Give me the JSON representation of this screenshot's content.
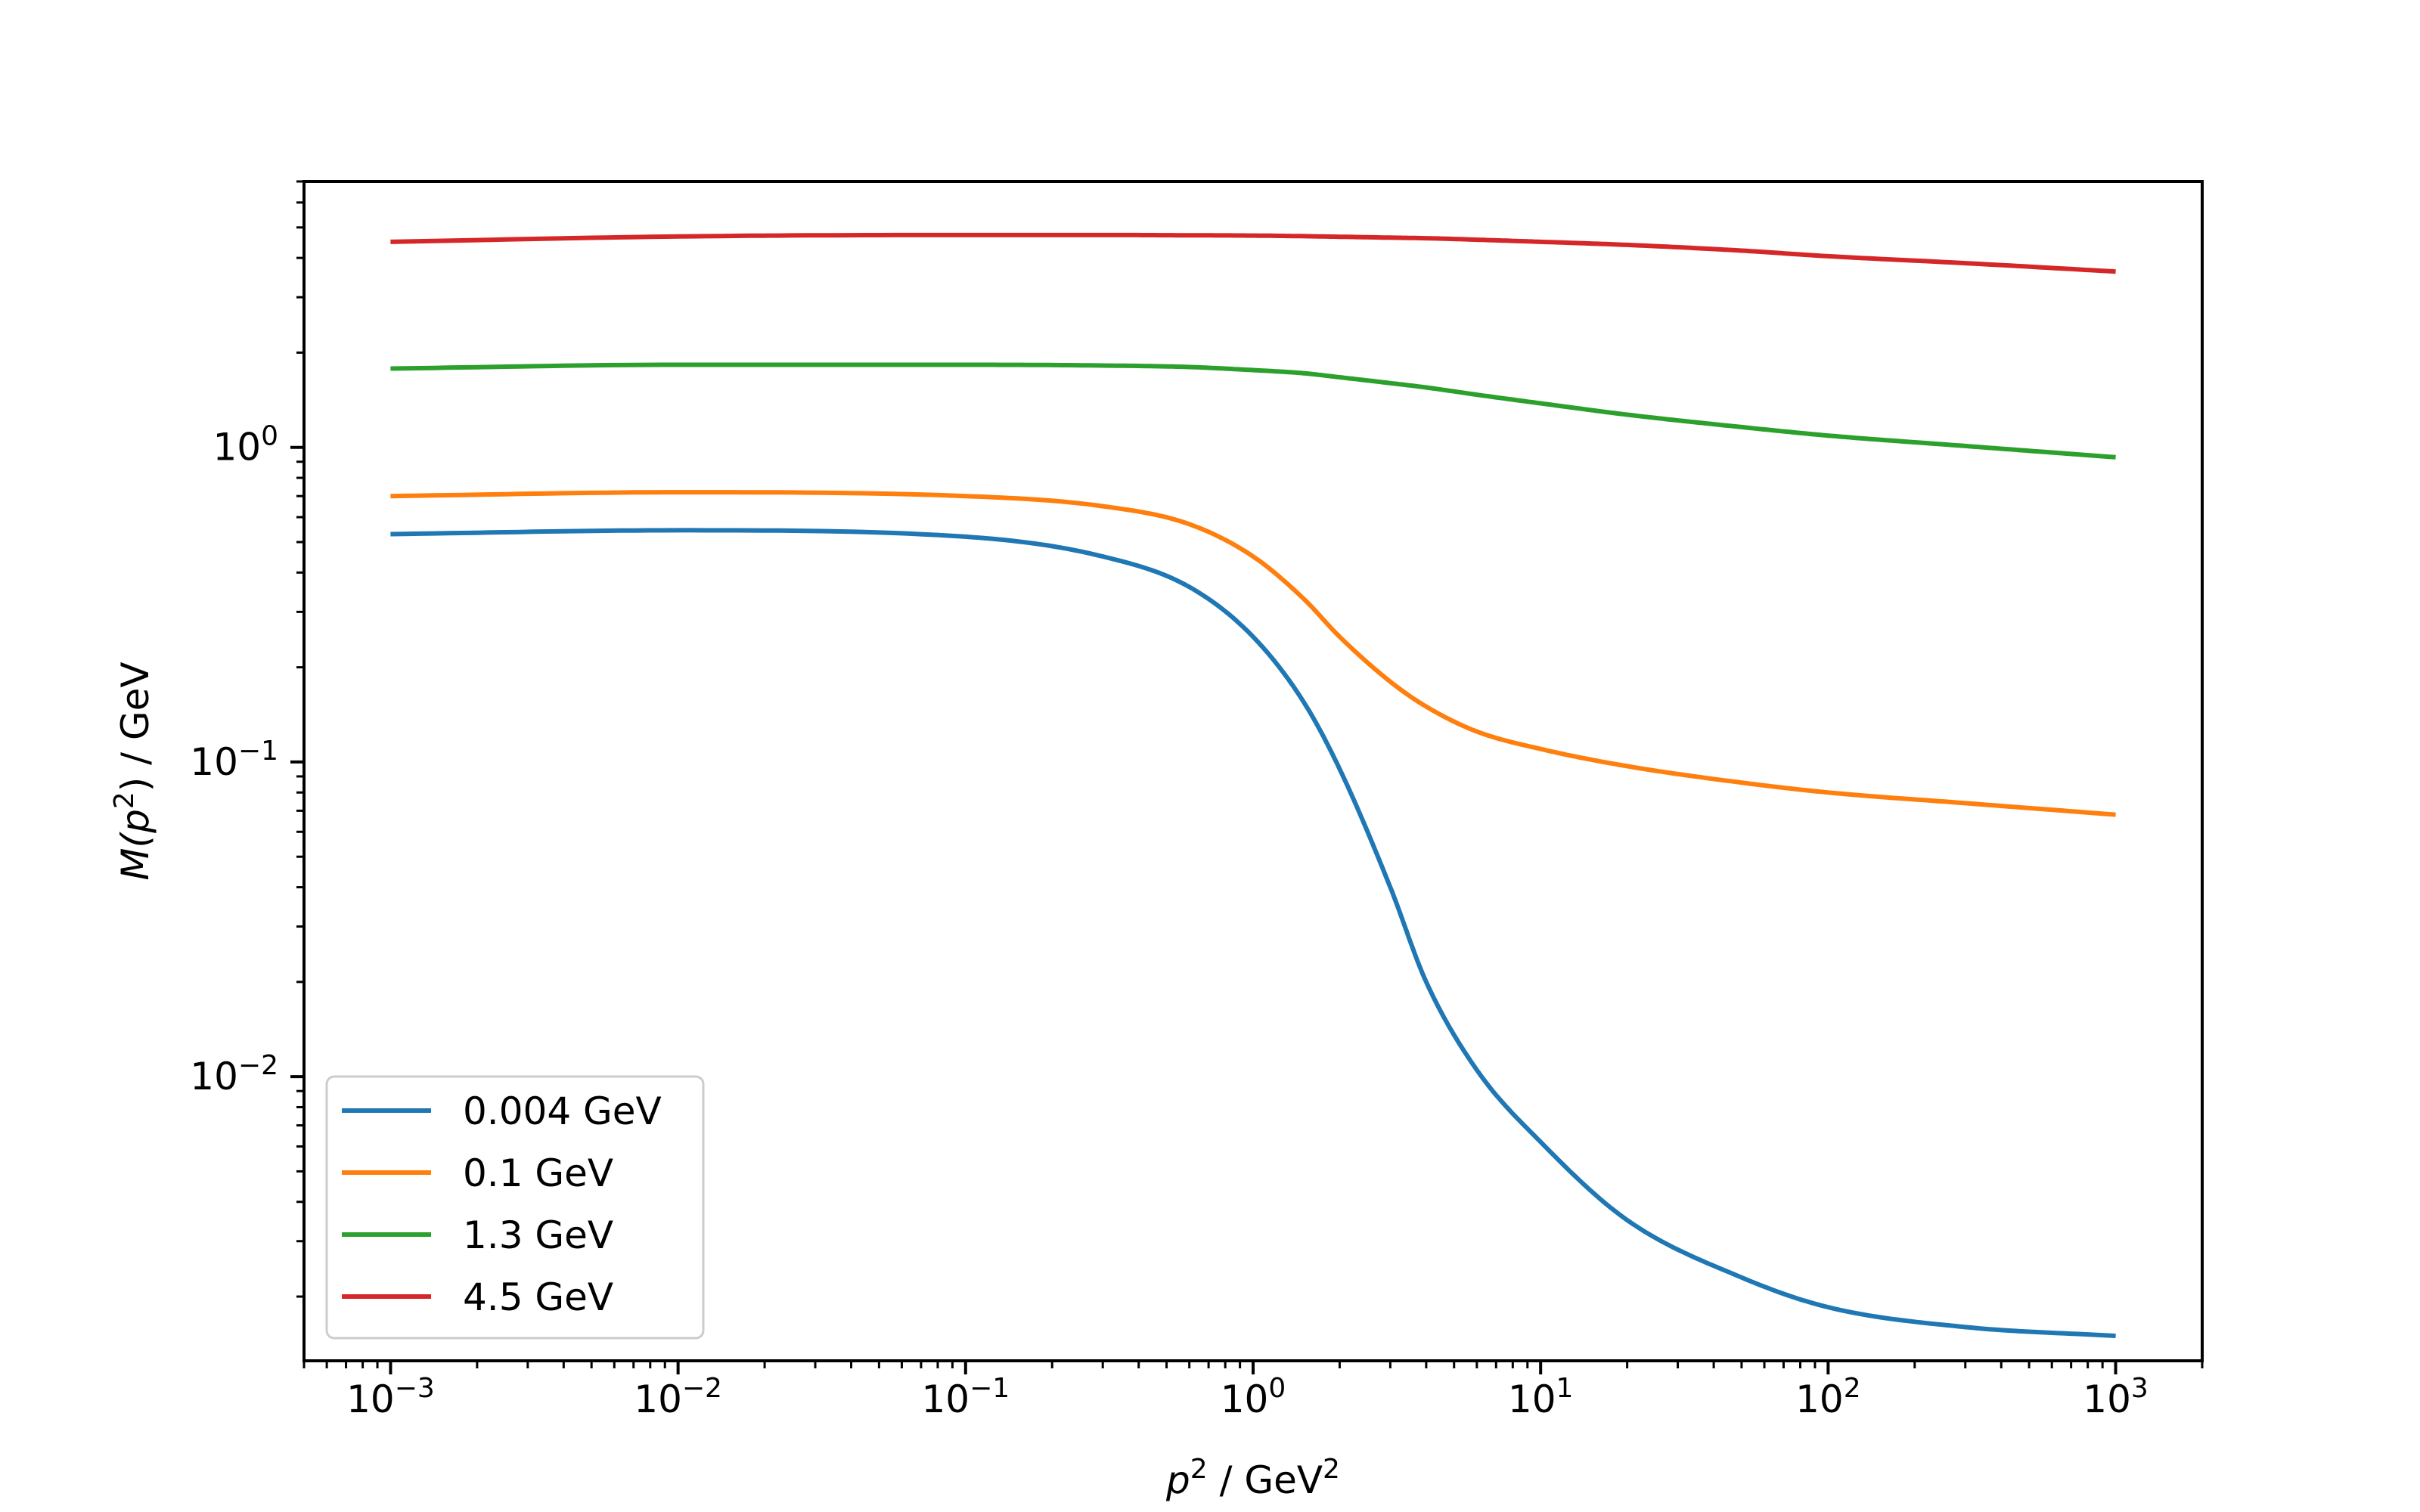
{
  "chart_data": {
    "type": "line",
    "title": "",
    "xlabel": {
      "base": "p",
      "base_sup": "2",
      "unit": " / GeV",
      "unit_sup": "2"
    },
    "ylabel": {
      "prefix": "M(",
      "base": "p",
      "base_sup": "2",
      "suffix": ") / GeV"
    },
    "xscale": "log",
    "yscale": "log",
    "xlim": [
      0.0005,
      2000
    ],
    "ylim": [
      0.00125,
      7
    ],
    "grid": false,
    "legend_position": "lower-left",
    "x_ticks": [
      {
        "value": 0.001,
        "base": "10",
        "exp": "−3"
      },
      {
        "value": 0.01,
        "base": "10",
        "exp": "−2"
      },
      {
        "value": 0.1,
        "base": "10",
        "exp": "−1"
      },
      {
        "value": 1,
        "base": "10",
        "exp": "0"
      },
      {
        "value": 10,
        "base": "10",
        "exp": "1"
      },
      {
        "value": 100,
        "base": "10",
        "exp": "2"
      },
      {
        "value": 1000,
        "base": "10",
        "exp": "3"
      }
    ],
    "y_ticks": [
      {
        "value": 0.01,
        "base": "10",
        "exp": "−2"
      },
      {
        "value": 0.1,
        "base": "10",
        "exp": "−1"
      },
      {
        "value": 1,
        "base": "10",
        "exp": "0"
      }
    ],
    "x": [
      0.001,
      0.01,
      0.1,
      0.3,
      0.6,
      1,
      1.5,
      2,
      3,
      4,
      6,
      10,
      20,
      50,
      100,
      300,
      1000
    ],
    "series": [
      {
        "name": "0.004 GeV",
        "color": "#1f77b4",
        "values": [
          0.53,
          0.545,
          0.52,
          0.45,
          0.36,
          0.25,
          0.155,
          0.095,
          0.04,
          0.02,
          0.0105,
          0.0062,
          0.0035,
          0.0023,
          0.00185,
          0.0016,
          0.0015
        ]
      },
      {
        "name": "0.1 GeV",
        "color": "#ff7f0e",
        "values": [
          0.7,
          0.72,
          0.7,
          0.65,
          0.57,
          0.45,
          0.33,
          0.25,
          0.18,
          0.15,
          0.125,
          0.11,
          0.097,
          0.086,
          0.08,
          0.074,
          0.068
        ]
      },
      {
        "name": "1.3 GeV",
        "color": "#2ca02c",
        "values": [
          1.78,
          1.83,
          1.83,
          1.82,
          1.8,
          1.76,
          1.72,
          1.67,
          1.6,
          1.55,
          1.47,
          1.38,
          1.27,
          1.16,
          1.09,
          1.01,
          0.93
        ]
      },
      {
        "name": "4.5 GeV",
        "color": "#d62728",
        "values": [
          4.5,
          4.68,
          4.73,
          4.73,
          4.72,
          4.71,
          4.69,
          4.67,
          4.64,
          4.62,
          4.57,
          4.5,
          4.4,
          4.22,
          4.05,
          3.85,
          3.62
        ]
      }
    ]
  }
}
